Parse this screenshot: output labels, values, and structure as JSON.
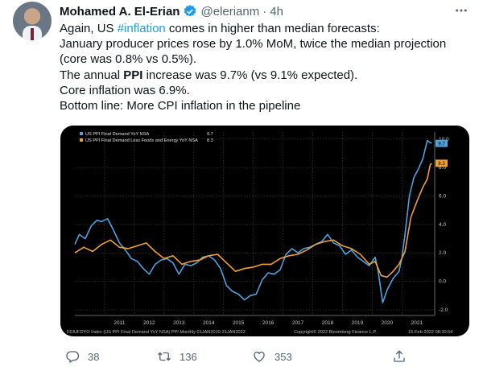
{
  "tweet": {
    "author_name": "Mohamed A. El-Erian",
    "handle": "@elerianm",
    "separator": "·",
    "time": "4h",
    "lines": [
      {
        "parts": [
          "Again, US ",
          "#inflation",
          " comes in higher than median forecasts:"
        ]
      },
      {
        "text": "January producer prices rose by 1.0% MoM, twice the median projection"
      },
      {
        "text": "(core was 0.8% vs 0.5%)."
      },
      {
        "parts": [
          "The annual ",
          "PPI",
          " increase was 9.7% (vs 9.1% expected)."
        ]
      },
      {
        "text": "Core inflation was 6.9%."
      },
      {
        "text": "Bottom line: More CPI inflation in the pipeline"
      }
    ],
    "replies": "38",
    "retweets": "136",
    "likes": "353"
  },
  "icons": {
    "verified": "verified-badge-icon",
    "more": "more-options-icon",
    "reply": "reply-icon",
    "retweet": "retweet-icon",
    "like": "like-icon",
    "share": "share-icon"
  },
  "colors": {
    "accent": "#1d9bf0",
    "muted_text": "#536471",
    "series_headline": "#4aa3df",
    "series_core": "#f0a030"
  },
  "chart_data": {
    "type": "line",
    "legend": "top-left",
    "grid": true,
    "ylim": [
      -2.4,
      10.5
    ],
    "yticks": [
      10.0,
      8.0,
      6.0,
      4.0,
      2.0,
      0.0,
      -2.0
    ],
    "ytick_labels": [
      "10.0",
      "8.0",
      "6.0",
      "4.0",
      "2.0",
      "0.0",
      "-2.0"
    ],
    "xlim": [
      2010.0,
      2022.1
    ],
    "xticks": [
      2011,
      2012,
      2013,
      2014,
      2015,
      2016,
      2017,
      2018,
      2019,
      2020,
      2021
    ],
    "xtick_labels": [
      "2011",
      "2012",
      "2013",
      "2014",
      "2015",
      "2016",
      "2017",
      "2018",
      "2019",
      "2020",
      "2021"
    ],
    "footer_left": "FDIUFDYO Index (US PPI Final Demand YoY NSA) PPI Monthly 01JAN2010-31JAN2022",
    "footer_center": "Copyright© 2022 Bloomberg Finance L.P.",
    "footer_right": "15-Feb-2022 08:30:54",
    "series": [
      {
        "name": "US PPI Final Demand YoY NSA",
        "last_label": "9.7",
        "color": "#4aa3df",
        "x": [
          2010.0,
          2010.15,
          2010.35,
          2010.55,
          2010.75,
          2010.9,
          2011.1,
          2011.3,
          2011.5,
          2011.7,
          2011.9,
          2012.1,
          2012.3,
          2012.5,
          2012.7,
          2012.9,
          2013.1,
          2013.3,
          2013.5,
          2013.7,
          2013.9,
          2014.1,
          2014.3,
          2014.5,
          2014.7,
          2014.9,
          2015.1,
          2015.3,
          2015.5,
          2015.7,
          2015.9,
          2016.1,
          2016.3,
          2016.5,
          2016.7,
          2016.9,
          2017.1,
          2017.3,
          2017.5,
          2017.7,
          2017.9,
          2018.1,
          2018.3,
          2018.5,
          2018.7,
          2018.9,
          2019.1,
          2019.3,
          2019.5,
          2019.7,
          2019.9,
          2020.1,
          2020.2,
          2020.35,
          2020.5,
          2020.7,
          2020.9,
          2021.0,
          2021.1,
          2021.25,
          2021.4,
          2021.55,
          2021.7,
          2021.85,
          2021.92,
          2022.0
        ],
        "y": [
          2.6,
          3.3,
          3.0,
          3.9,
          4.3,
          4.2,
          4.4,
          3.6,
          2.7,
          2.2,
          1.6,
          1.4,
          0.9,
          0.5,
          1.2,
          1.5,
          1.6,
          1.3,
          0.5,
          1.2,
          1.1,
          1.3,
          1.7,
          1.8,
          1.5,
          0.9,
          -0.3,
          -0.7,
          -0.9,
          -1.3,
          -1.0,
          -0.9,
          0.1,
          0.6,
          0.5,
          0.8,
          1.9,
          2.3,
          2.0,
          2.3,
          2.4,
          2.6,
          2.8,
          3.3,
          2.7,
          2.5,
          1.9,
          2.2,
          1.7,
          1.4,
          1.1,
          1.7,
          0.7,
          -1.5,
          -0.6,
          0.2,
          0.7,
          1.7,
          3.3,
          6.0,
          7.3,
          7.9,
          8.6,
          9.9,
          9.8,
          9.7
        ]
      },
      {
        "name": "US PPI Final Demand Less Foods and Energy YoY NSA",
        "last_label": "8.3",
        "color": "#f0a030",
        "x": [
          2010.0,
          2010.3,
          2010.6,
          2010.9,
          2011.2,
          2011.5,
          2011.8,
          2012.1,
          2012.4,
          2012.7,
          2013.0,
          2013.3,
          2013.6,
          2013.9,
          2014.2,
          2014.5,
          2014.8,
          2015.1,
          2015.4,
          2015.7,
          2016.0,
          2016.3,
          2016.6,
          2016.9,
          2017.2,
          2017.5,
          2017.8,
          2018.1,
          2018.4,
          2018.7,
          2019.0,
          2019.3,
          2019.6,
          2019.9,
          2020.1,
          2020.3,
          2020.5,
          2020.7,
          2020.9,
          2021.1,
          2021.3,
          2021.5,
          2021.7,
          2021.85,
          2021.95,
          2022.0
        ],
        "y": [
          2.0,
          2.4,
          2.1,
          2.6,
          2.9,
          2.4,
          2.3,
          2.5,
          2.7,
          2.1,
          1.6,
          1.8,
          1.2,
          1.4,
          1.5,
          1.8,
          1.9,
          1.3,
          0.7,
          0.9,
          1.0,
          1.2,
          1.2,
          1.6,
          1.8,
          1.9,
          2.2,
          2.6,
          2.8,
          2.9,
          2.5,
          2.3,
          1.9,
          1.2,
          1.4,
          0.4,
          0.3,
          0.7,
          1.2,
          2.1,
          4.5,
          5.6,
          6.6,
          7.2,
          8.2,
          8.3
        ]
      }
    ]
  }
}
